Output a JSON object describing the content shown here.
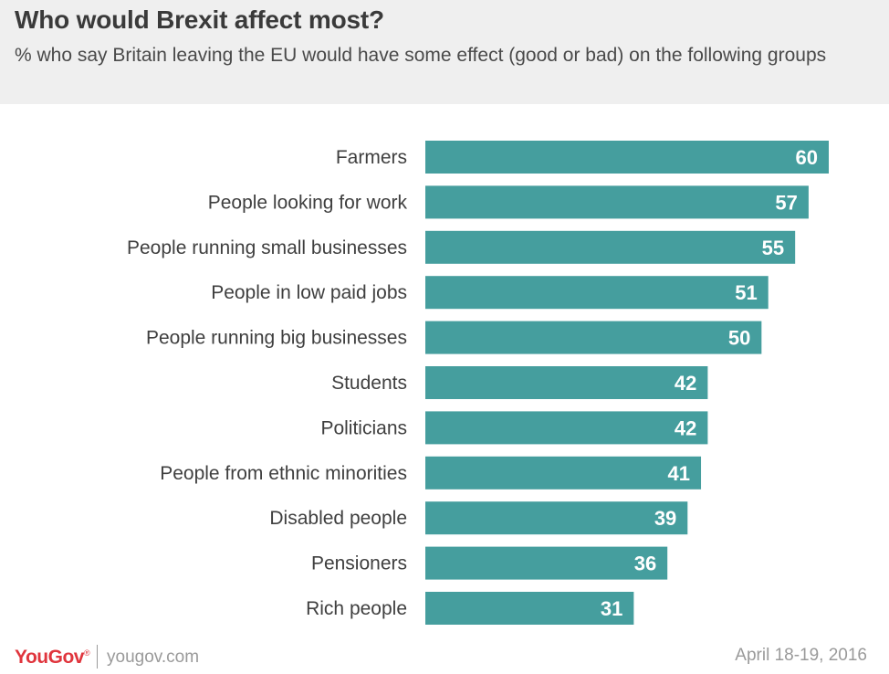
{
  "title": "Who would Brexit affect most?",
  "subtitle": "% who say Britain leaving the EU would have some effect (good or bad) on the following groups",
  "chart_data": {
    "type": "bar",
    "orientation": "horizontal",
    "title": "Who would Brexit affect most?",
    "subtitle": "% who say Britain leaving the EU would have some effect (good or bad) on the following groups",
    "categories": [
      "Farmers",
      "People looking for work",
      "People running small businesses",
      "People in low paid jobs",
      "People running big businesses",
      "Students",
      "Politicians",
      "People from ethnic minorities",
      "Disabled people",
      "Pensioners",
      "Rich people"
    ],
    "values": [
      60,
      57,
      55,
      51,
      50,
      42,
      42,
      41,
      39,
      36,
      31
    ],
    "xlim": [
      0,
      60
    ],
    "bar_color": "#459e9e",
    "label_color": "#ffffff",
    "grid": false
  },
  "footer": {
    "logo": "YouGov",
    "logo_mark": "®",
    "site": "yougov.com",
    "date": "April 18-19, 2016"
  }
}
